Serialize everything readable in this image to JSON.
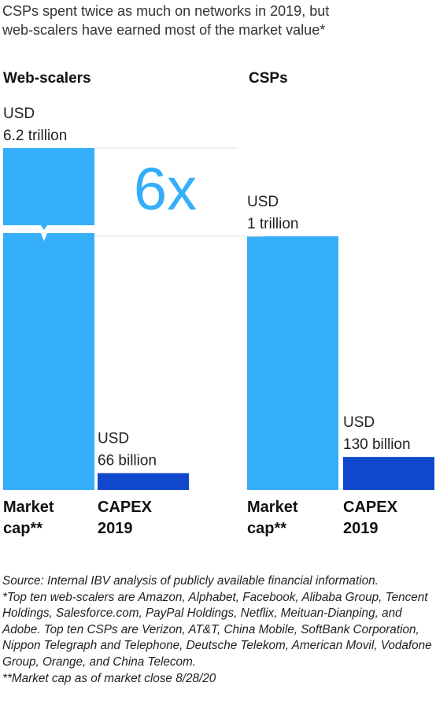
{
  "title_lines": [
    "CSPs spent twice as much on networks in 2019, but",
    "web-scalers have earned most of the market value*"
  ],
  "colors": {
    "bar_light": "#35aefa",
    "bar_dark": "#0f48cc",
    "multiplier": "#35aefa"
  },
  "chart_data": {
    "type": "bar",
    "title": "CSPs spent twice as much on networks in 2019, but web-scalers have earned most of the market value*",
    "groups": [
      {
        "name": "Web-scalers",
        "bars": [
          {
            "category_lines": [
              "Market",
              "cap**"
            ],
            "value": 6.2,
            "unit": "trillion",
            "label_lines": [
              "USD",
              "6.2 trillion"
            ],
            "color": "#35aefa",
            "axis_break": true
          },
          {
            "category_lines": [
              "CAPEX",
              "2019"
            ],
            "value": 0.066,
            "unit": "trillion",
            "label_lines": [
              "USD",
              "66 billion"
            ],
            "color": "#0f48cc"
          }
        ]
      },
      {
        "name": "CSPs",
        "bars": [
          {
            "category_lines": [
              "Market",
              "cap**"
            ],
            "value": 1.0,
            "unit": "trillion",
            "label_lines": [
              "USD",
              "1 trillion"
            ],
            "color": "#35aefa"
          },
          {
            "category_lines": [
              "CAPEX",
              "2019"
            ],
            "value": 0.13,
            "unit": "trillion",
            "label_lines": [
              "USD",
              "130 billion"
            ],
            "color": "#0f48cc"
          }
        ]
      }
    ],
    "annotation": "6x",
    "axis_break_on": "Web-scalers Market cap**"
  },
  "footnotes": [
    "Source: Internal IBV analysis of publicly available financial information.",
    "*Top ten web-scalers are Amazon, Alphabet, Facebook, Alibaba Group, Tencent Holdings, Salesforce.com, PayPal Holdings, Netflix, Meituan-Dianping, and Adobe. Top ten CSPs are Verizon, AT&T, China Mobile, SoftBank Corporation, Nippon Telegraph and Telephone, Deutsche Telekom, American Movil, Vodafone Group, Orange, and China Telecom.",
    "**Market cap as of market close 8/28/20"
  ]
}
